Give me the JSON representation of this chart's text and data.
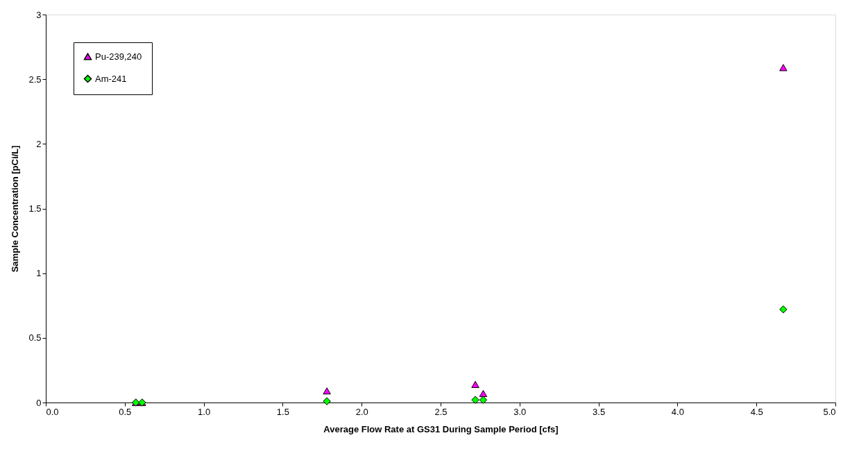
{
  "chart_data": {
    "type": "scatter",
    "xlabel": "Average Flow Rate at GS31 During Sample Period [cfs]",
    "ylabel": "Sample Concentration [pCi/L]",
    "xlim": [
      0,
      5
    ],
    "xticks": [
      {
        "value": 0,
        "label": "0.0"
      },
      0.5,
      {
        "value": 1,
        "label": "1.0"
      },
      1.5,
      {
        "value": 2,
        "label": "2.0"
      },
      2.5,
      {
        "value": 3,
        "label": "3.0"
      },
      3.5,
      {
        "value": 4,
        "label": "4.0"
      },
      4.5,
      {
        "value": 5,
        "label": "5.0"
      }
    ],
    "ylim": [
      0,
      3
    ],
    "yticks": [
      0,
      0.5,
      1,
      1.5,
      2,
      2.5,
      3
    ],
    "grid": false,
    "legend": "top left",
    "series": [
      {
        "name": "Pu-239,240",
        "color": "#ff00ff",
        "marker": "triangle",
        "x": [
          0.57,
          0.61,
          1.78,
          2.72,
          2.77,
          4.67
        ],
        "values": [
          0.0,
          0.0,
          0.09,
          0.14,
          0.07,
          2.59
        ]
      },
      {
        "name": "Am-241",
        "color": "#00ff00",
        "marker": "diamond",
        "x": [
          0.57,
          0.61,
          1.78,
          2.72,
          2.77,
          4.67
        ],
        "values": [
          0.0,
          0.0,
          0.01,
          0.02,
          0.02,
          0.72
        ]
      }
    ]
  }
}
